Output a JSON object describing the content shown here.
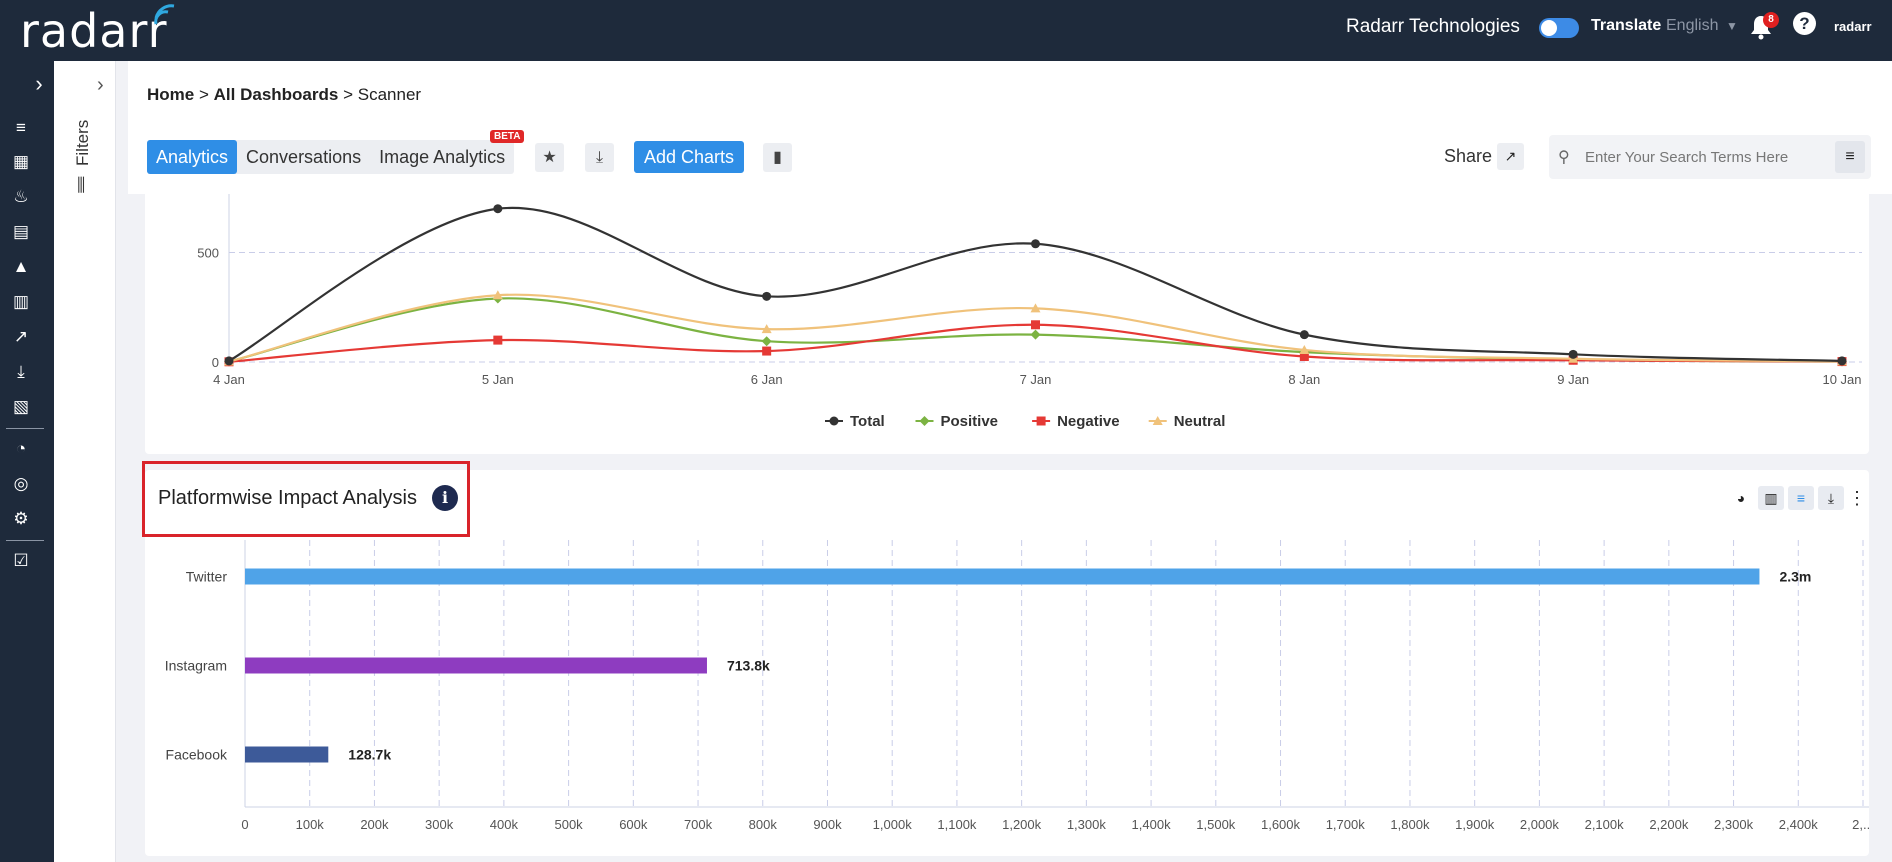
{
  "header": {
    "logo": "radarr",
    "company": "Radarr Technologies",
    "translate_label": "Translate",
    "language": "English",
    "notification_count": "8",
    "help_glyph": "?",
    "mini_logo": "radarr"
  },
  "breadcrumb": {
    "home": "Home",
    "sep": ">",
    "all": "All Dashboards",
    "current": "Scanner"
  },
  "tabs": [
    {
      "label": "Analytics",
      "active": true
    },
    {
      "label": "Conversations",
      "active": false
    },
    {
      "label": "Image Analytics",
      "active": false
    }
  ],
  "beta_label": "BETA",
  "add_charts_label": "Add Charts",
  "share_label": "Share",
  "search": {
    "placeholder": "Enter Your Search Terms Here"
  },
  "filters_label": "Filters",
  "line_chart": {
    "type": "line",
    "categories": [
      "4 Jan",
      "5 Jan",
      "6 Jan",
      "7 Jan",
      "8 Jan",
      "9 Jan",
      "10 Jan"
    ],
    "y_ticks": [
      "500",
      "0"
    ],
    "ylim": [
      0,
      950
    ],
    "series": [
      {
        "name": "Total",
        "color": "#333333",
        "marker": "circle",
        "values": [
          5,
          700,
          300,
          540,
          125,
          35,
          5
        ]
      },
      {
        "name": "Positive",
        "color": "#7cb342",
        "marker": "diamond",
        "values": [
          2,
          290,
          95,
          125,
          45,
          10,
          2
        ]
      },
      {
        "name": "Negative",
        "color": "#e53935",
        "marker": "square",
        "values": [
          1,
          100,
          50,
          170,
          25,
          8,
          2
        ]
      },
      {
        "name": "Neutral",
        "color": "#f0c27b",
        "marker": "triangle",
        "values": [
          2,
          305,
          150,
          245,
          55,
          15,
          3
        ]
      }
    ]
  },
  "chart_data": {
    "type": "bar",
    "orientation": "horizontal",
    "title": "Platformwise Impact Analysis",
    "categories": [
      "Twitter",
      "Instagram",
      "Facebook"
    ],
    "values": [
      2340000,
      713800,
      128700
    ],
    "value_labels": [
      "2.3m",
      "713.8k",
      "128.7k"
    ],
    "colors": [
      "#4fa3e8",
      "#8e3cc0",
      "#3d5a99"
    ],
    "x_ticks": [
      "0",
      "100k",
      "200k",
      "300k",
      "400k",
      "500k",
      "600k",
      "700k",
      "800k",
      "900k",
      "1,000k",
      "1,100k",
      "1,200k",
      "1,300k",
      "1,400k",
      "1,500k",
      "1,600k",
      "1,700k",
      "1,800k",
      "1,900k",
      "2,000k",
      "2,100k",
      "2,200k",
      "2,300k",
      "2,400k",
      "2,..."
    ],
    "xlim": [
      0,
      2500000
    ],
    "grid": true
  }
}
